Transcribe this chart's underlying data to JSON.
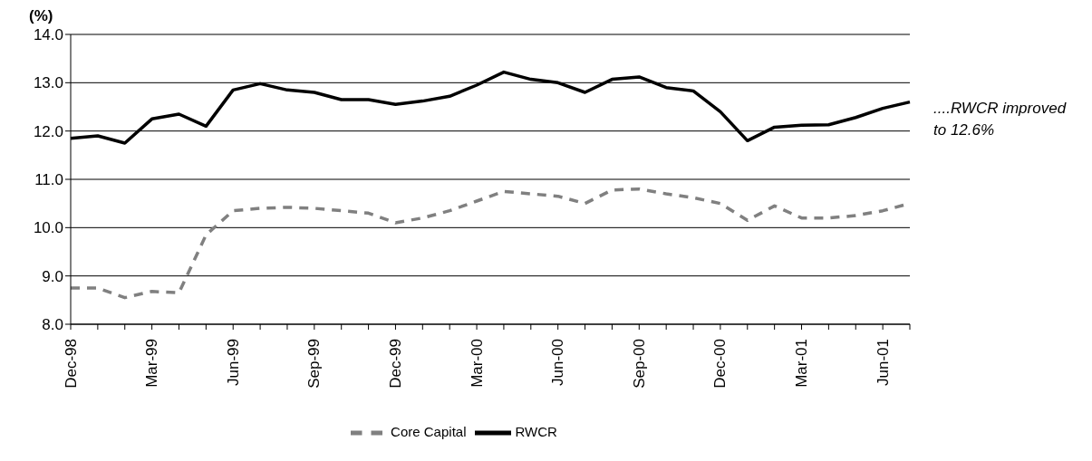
{
  "chart_data": {
    "type": "line",
    "ylabel": "(%)",
    "categories": [
      "Dec-98",
      null,
      null,
      "Mar-99",
      null,
      null,
      "Jun-99",
      null,
      null,
      "Sep-99",
      null,
      null,
      "Dec-99",
      null,
      null,
      "Mar-00",
      null,
      null,
      "Jun-00",
      null,
      null,
      "Sep-00",
      null,
      null,
      "Dec-00",
      null,
      null,
      "Mar-01",
      null,
      null,
      "Jun-01",
      null
    ],
    "series": [
      {
        "name": "RWCR",
        "color": "#000000",
        "line_style": "solid",
        "values": [
          11.85,
          11.9,
          11.75,
          12.25,
          12.35,
          12.1,
          12.85,
          12.98,
          12.85,
          12.8,
          12.65,
          12.65,
          12.55,
          12.62,
          12.72,
          12.95,
          13.22,
          13.07,
          13.0,
          12.8,
          13.07,
          13.12,
          12.9,
          12.83,
          12.4,
          11.8,
          12.08,
          12.12,
          12.13,
          12.28,
          12.47,
          12.6
        ]
      },
      {
        "name": "Core Capital",
        "color": "#808080",
        "line_style": "dashed",
        "values": [
          8.75,
          8.75,
          8.55,
          8.68,
          8.65,
          9.85,
          10.35,
          10.4,
          10.42,
          10.4,
          10.35,
          10.3,
          10.1,
          10.2,
          10.35,
          10.55,
          10.75,
          10.7,
          10.65,
          10.5,
          10.78,
          10.8,
          10.7,
          10.62,
          10.5,
          10.15,
          10.45,
          10.2,
          10.2,
          10.25,
          10.35,
          10.5
        ]
      }
    ],
    "ylim": [
      8,
      14
    ],
    "yticks": [
      {
        "value": 8,
        "label": "8.0"
      },
      {
        "value": 9,
        "label": "9.0"
      },
      {
        "value": 10,
        "label": "10.0"
      },
      {
        "value": 11,
        "label": "11.0"
      },
      {
        "value": 12,
        "label": "12.0"
      },
      {
        "value": 13,
        "label": "13.0"
      },
      {
        "value": 14,
        "label": "14.0"
      }
    ],
    "grid": "y",
    "legend": "bottom",
    "marker": "none",
    "annotations": [
      "....RWCR improved to 12.6%"
    ]
  }
}
